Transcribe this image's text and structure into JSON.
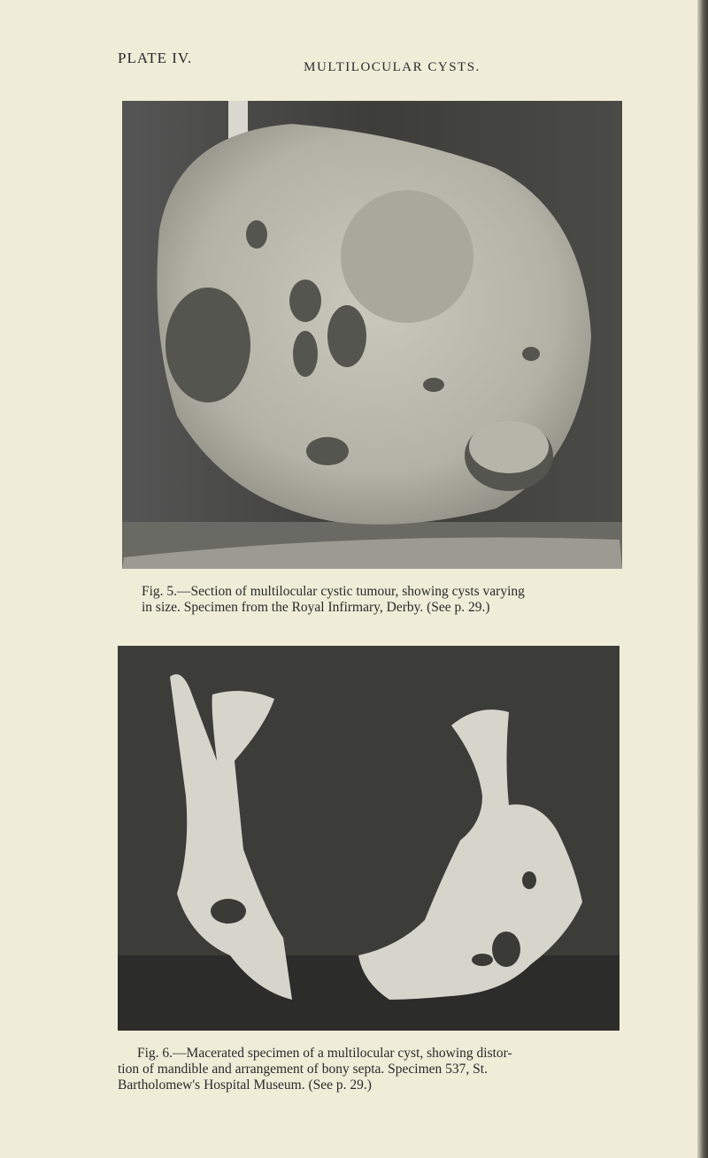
{
  "plate": {
    "label": "PLATE IV.",
    "title": "MULTILOCULAR CYSTS."
  },
  "figures": [
    {
      "caption_lines": [
        "Fig. 5.—Section of multilocular cystic tumour, showing cysts varying",
        "in size. Specimen from the Royal Infirmary, Derby. (See p. 29.)"
      ]
    },
    {
      "caption_lines": [
        "Fig. 6.—Macerated specimen of a multilocular cyst, showing distor-",
        "tion of mandible and arrangement of bony septa. Specimen 537, St.",
        "Bartholomew's Hospital Museum. (See p. 29.)"
      ]
    }
  ]
}
